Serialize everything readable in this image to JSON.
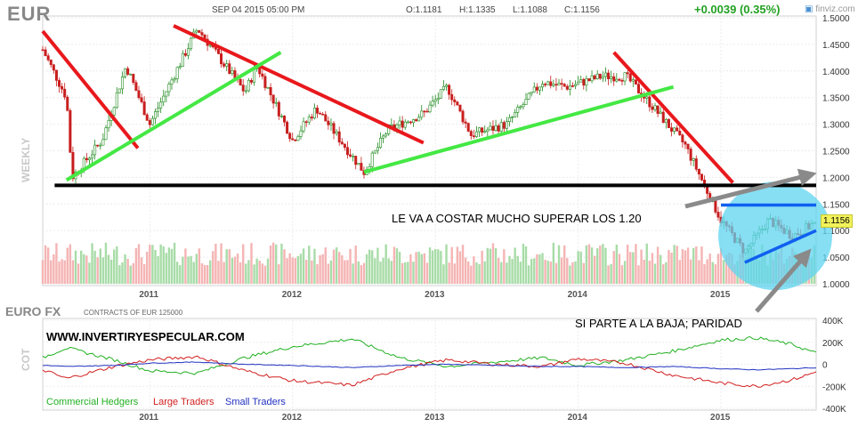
{
  "header": {
    "ticker": "EUR",
    "datetime": "SEP 04 2015 05:00 PM",
    "open": "O:1.1181",
    "high": "H:1.1335",
    "low": "L:1.1088",
    "close": "C:1.1156",
    "change": "+0.0039 (0.35%)",
    "logo": "finviz.com"
  },
  "price_panel": {
    "side_label": "WEEKLY",
    "last_price_tag": "1.1156",
    "y_ticks": [
      "1.5000",
      "1.4500",
      "1.4000",
      "1.3500",
      "1.3000",
      "1.2500",
      "1.2000",
      "1.1500",
      "1.1000",
      "1.0500",
      "1.0000"
    ],
    "x_ticks": [
      "2011",
      "2012",
      "2013",
      "2014",
      "2015"
    ],
    "annotations": {
      "support_note": "LE VA  A COSTAR MUCHO SUPERAR LOS 1.20",
      "downside_note": "SI PARTE A  LA BAJA; PARIDAD"
    }
  },
  "cot_panel": {
    "title": "EURO FX",
    "contracts": "CONTRACTS OF EUR 125000",
    "side_label": "COT",
    "url": "WWW.INVERTIRYESPECULAR.COM",
    "y_ticks": [
      "400K",
      "200K",
      "0",
      "-200K",
      "-400K"
    ],
    "x_ticks": [
      "2011",
      "2012",
      "2013",
      "2014",
      "2015"
    ],
    "legend": [
      {
        "label": "Commercial Hedgers",
        "color": "#22b022"
      },
      {
        "label": "Large Traders",
        "color": "#d22020"
      },
      {
        "label": "Small Traders",
        "color": "#2030c0"
      }
    ]
  },
  "colors": {
    "up": "#1f8a1f",
    "down": "#c81e1e",
    "vol_up": "#a8dca8",
    "vol_down": "#f5b4b4",
    "trend_red": "#e8181c",
    "trend_green": "#44e844",
    "support_black": "#000000",
    "range_blue": "#1060f0",
    "highlight_circle": "#5fd4f0",
    "gray_arrow": "#8a8a8a"
  },
  "chart_data": [
    {
      "type": "candlestick",
      "title": "EUR",
      "timeframe": "WEEKLY",
      "ylim": [
        1.0,
        1.5
      ],
      "x_range": [
        "2010-04",
        "2015-09"
      ],
      "last": {
        "date": "2015-09-04",
        "open": 1.1181,
        "high": 1.1335,
        "low": 1.1088,
        "close": 1.1156
      },
      "keypoints": [
        {
          "x": "2010-04",
          "y": 1.44
        },
        {
          "x": "2010-06",
          "y": 1.35
        },
        {
          "x": "2010-06-15",
          "y": 1.2
        },
        {
          "x": "2010-09",
          "y": 1.27
        },
        {
          "x": "2010-11",
          "y": 1.41
        },
        {
          "x": "2011-01",
          "y": 1.3
        },
        {
          "x": "2011-05",
          "y": 1.48
        },
        {
          "x": "2011-07",
          "y": 1.42
        },
        {
          "x": "2011-09",
          "y": 1.36
        },
        {
          "x": "2011-10",
          "y": 1.41
        },
        {
          "x": "2012-01",
          "y": 1.27
        },
        {
          "x": "2012-03",
          "y": 1.33
        },
        {
          "x": "2012-06",
          "y": 1.24
        },
        {
          "x": "2012-07",
          "y": 1.21
        },
        {
          "x": "2012-09",
          "y": 1.29
        },
        {
          "x": "2012-12",
          "y": 1.32
        },
        {
          "x": "2013-02",
          "y": 1.37
        },
        {
          "x": "2013-04",
          "y": 1.28
        },
        {
          "x": "2013-07",
          "y": 1.3
        },
        {
          "x": "2013-10",
          "y": 1.38
        },
        {
          "x": "2013-12",
          "y": 1.37
        },
        {
          "x": "2014-03",
          "y": 1.39
        },
        {
          "x": "2014-05",
          "y": 1.39
        },
        {
          "x": "2014-07",
          "y": 1.34
        },
        {
          "x": "2014-10",
          "y": 1.26
        },
        {
          "x": "2015-01",
          "y": 1.12
        },
        {
          "x": "2015-03",
          "y": 1.06
        },
        {
          "x": "2015-05",
          "y": 1.12
        },
        {
          "x": "2015-07",
          "y": 1.09
        },
        {
          "x": "2015-09",
          "y": 1.1156
        }
      ]
    },
    {
      "type": "line",
      "title": "EURO FX",
      "ylim": [
        -400000,
        400000
      ],
      "x_range": [
        "2010-04",
        "2015-09"
      ],
      "series": [
        {
          "name": "Commercial Hedgers",
          "points": [
            {
              "x": "2010-04",
              "y": 60000
            },
            {
              "x": "2010-06",
              "y": 150000
            },
            {
              "x": "2010-10",
              "y": 40000
            },
            {
              "x": "2011-01",
              "y": -60000
            },
            {
              "x": "2011-05",
              "y": -80000
            },
            {
              "x": "2011-09",
              "y": 60000
            },
            {
              "x": "2012-01",
              "y": 160000
            },
            {
              "x": "2012-06",
              "y": 230000
            },
            {
              "x": "2012-10",
              "y": 60000
            },
            {
              "x": "2013-02",
              "y": -20000
            },
            {
              "x": "2013-06",
              "y": 20000
            },
            {
              "x": "2013-10",
              "y": 60000
            },
            {
              "x": "2014-01",
              "y": -10000
            },
            {
              "x": "2014-05",
              "y": 40000
            },
            {
              "x": "2014-09",
              "y": 120000
            },
            {
              "x": "2015-01",
              "y": 220000
            },
            {
              "x": "2015-04",
              "y": 240000
            },
            {
              "x": "2015-07",
              "y": 180000
            },
            {
              "x": "2015-09",
              "y": 100000
            }
          ]
        },
        {
          "name": "Large Traders",
          "points": [
            {
              "x": "2010-04",
              "y": -50000
            },
            {
              "x": "2010-06",
              "y": -130000
            },
            {
              "x": "2010-10",
              "y": -20000
            },
            {
              "x": "2011-01",
              "y": 40000
            },
            {
              "x": "2011-05",
              "y": 70000
            },
            {
              "x": "2011-09",
              "y": -60000
            },
            {
              "x": "2012-01",
              "y": -150000
            },
            {
              "x": "2012-06",
              "y": -190000
            },
            {
              "x": "2012-10",
              "y": -40000
            },
            {
              "x": "2013-02",
              "y": 40000
            },
            {
              "x": "2013-06",
              "y": 0
            },
            {
              "x": "2013-10",
              "y": -20000
            },
            {
              "x": "2014-01",
              "y": 50000
            },
            {
              "x": "2014-05",
              "y": 10000
            },
            {
              "x": "2014-09",
              "y": -100000
            },
            {
              "x": "2015-01",
              "y": -170000
            },
            {
              "x": "2015-04",
              "y": -200000
            },
            {
              "x": "2015-07",
              "y": -140000
            },
            {
              "x": "2015-09",
              "y": -70000
            }
          ]
        },
        {
          "name": "Small Traders",
          "points": [
            {
              "x": "2010-04",
              "y": -10000
            },
            {
              "x": "2010-06",
              "y": -20000
            },
            {
              "x": "2010-10",
              "y": -10000
            },
            {
              "x": "2011-01",
              "y": 10000
            },
            {
              "x": "2011-05",
              "y": 20000
            },
            {
              "x": "2011-09",
              "y": 0
            },
            {
              "x": "2012-01",
              "y": -10000
            },
            {
              "x": "2012-06",
              "y": -30000
            },
            {
              "x": "2012-10",
              "y": -10000
            },
            {
              "x": "2013-02",
              "y": 0
            },
            {
              "x": "2013-06",
              "y": -10000
            },
            {
              "x": "2013-10",
              "y": -20000
            },
            {
              "x": "2014-01",
              "y": -20000
            },
            {
              "x": "2014-05",
              "y": -30000
            },
            {
              "x": "2014-09",
              "y": -20000
            },
            {
              "x": "2015-01",
              "y": -40000
            },
            {
              "x": "2015-04",
              "y": -50000
            },
            {
              "x": "2015-07",
              "y": -40000
            },
            {
              "x": "2015-09",
              "y": -30000
            }
          ]
        }
      ]
    }
  ],
  "drawings": {
    "support_level": 1.185,
    "range_top": 1.148,
    "range_bottom_from": 1.04,
    "range_bottom_to": 1.1,
    "red_trendlines": [
      {
        "from": {
          "x": "2010-04",
          "y": 1.475
        },
        "to": {
          "x": "2010-12",
          "y": 1.255
        }
      },
      {
        "from": {
          "x": "2011-03",
          "y": 1.485
        },
        "to": {
          "x": "2012-12",
          "y": 1.265
        }
      },
      {
        "from": {
          "x": "2014-04",
          "y": 1.435
        },
        "to": {
          "x": "2015-02",
          "y": 1.19
        }
      }
    ],
    "green_trendlines": [
      {
        "from": {
          "x": "2010-06",
          "y": 1.195
        },
        "to": {
          "x": "2011-12",
          "y": 1.435
        }
      },
      {
        "from": {
          "x": "2012-07",
          "y": 1.21
        },
        "to": {
          "x": "2014-09",
          "y": 1.37
        }
      }
    ]
  }
}
